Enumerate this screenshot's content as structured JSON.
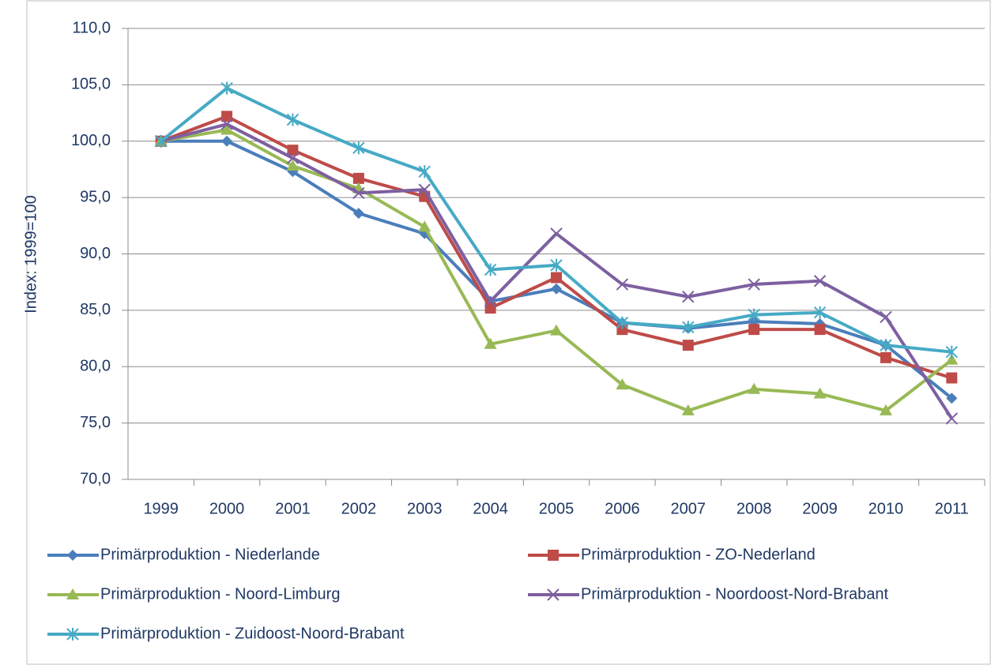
{
  "chart_data": {
    "type": "line",
    "y_label": "Index: 1999=100",
    "categories": [
      "1999",
      "2000",
      "2001",
      "2002",
      "2003",
      "2004",
      "2005",
      "2006",
      "2007",
      "2008",
      "2009",
      "2010",
      "2011"
    ],
    "ylim": [
      70,
      110
    ],
    "yticks": [
      {
        "value": 70,
        "label": "70,0"
      },
      {
        "value": 75,
        "label": "75,0"
      },
      {
        "value": 80,
        "label": "80,0"
      },
      {
        "value": 85,
        "label": "85,0"
      },
      {
        "value": 90,
        "label": "90,0"
      },
      {
        "value": 95,
        "label": "95,0"
      },
      {
        "value": 100,
        "label": "100,0"
      },
      {
        "value": 105,
        "label": "105,0"
      },
      {
        "value": 110,
        "label": "110,0"
      }
    ],
    "grid": true,
    "legend": "bottom",
    "series": [
      {
        "name": "Primärproduktion  - Niederlande",
        "color": "#4a7ebb",
        "marker": "diamond",
        "values": [
          100,
          100,
          97.3,
          93.6,
          91.8,
          85.8,
          86.9,
          83.9,
          83.4,
          84.0,
          83.8,
          81.9,
          77.2
        ]
      },
      {
        "name": "Primärproduktion  - ZO-Nederland",
        "color": "#be4b48",
        "marker": "square",
        "values": [
          100,
          102.2,
          99.2,
          96.7,
          95.1,
          85.2,
          87.9,
          83.3,
          81.9,
          83.3,
          83.3,
          80.8,
          79.0
        ]
      },
      {
        "name": "Primärproduktion  - Noord-Limburg",
        "color": "#98b954",
        "marker": "triangle",
        "values": [
          100,
          101.0,
          97.8,
          95.8,
          92.4,
          82.0,
          83.2,
          78.4,
          76.1,
          78.0,
          77.6,
          76.1,
          80.6
        ]
      },
      {
        "name": "Primärproduktion  - Noordoost-Nord-Brabant",
        "color": "#7d60a0",
        "marker": "x",
        "values": [
          100,
          101.5,
          98.5,
          95.4,
          95.7,
          85.8,
          91.8,
          87.3,
          86.2,
          87.3,
          87.6,
          84.4,
          75.4
        ]
      },
      {
        "name": "Primärproduktion  - Zuidoost-Noord-Brabant",
        "color": "#46aac5",
        "marker": "star",
        "values": [
          100,
          104.7,
          101.9,
          99.4,
          97.3,
          88.6,
          89.0,
          83.9,
          83.5,
          84.6,
          84.8,
          81.9,
          81.3
        ]
      }
    ]
  }
}
